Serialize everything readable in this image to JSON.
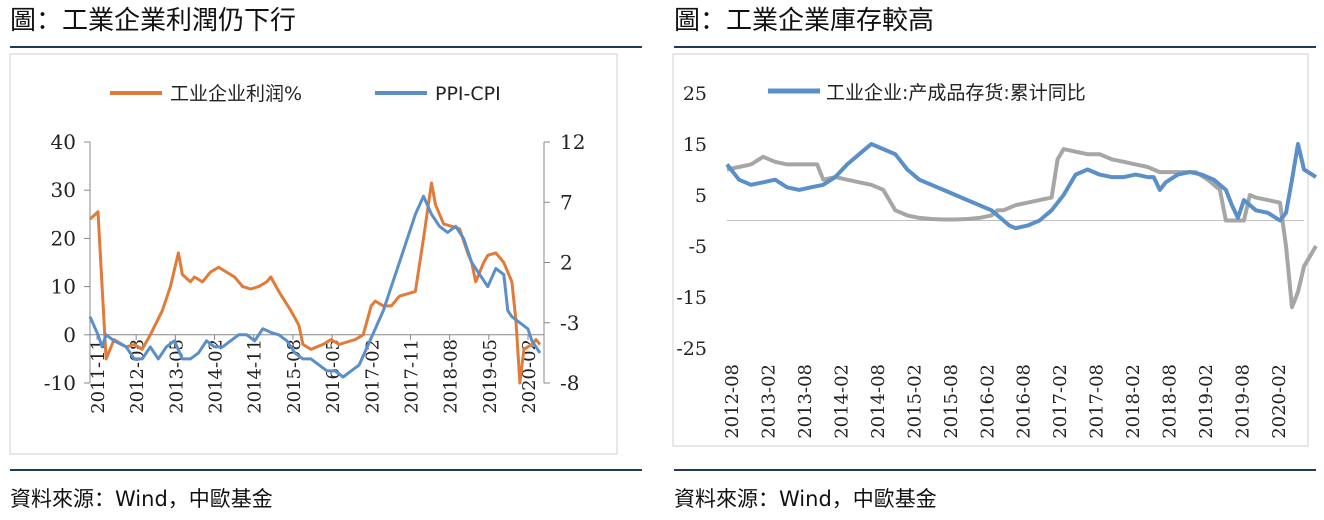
{
  "left": {
    "title": "圖：工業企業利潤仍下行",
    "source": "資料來源：Wind，中歐基金"
  },
  "right": {
    "title": "圖：工業企業庫存較高",
    "source": "資料來源：Wind，中歐基金"
  },
  "colors": {
    "orange": "#E07B39",
    "blue": "#5B8FC9",
    "gray": "#A6A6A6",
    "rule": "#1F3A5F"
  },
  "chart_data": [
    {
      "type": "line",
      "title": "",
      "legend_position": "top",
      "x_ticks": [
        "2011-11",
        "2012-08",
        "2013-05",
        "2014-02",
        "2014-11",
        "2015-08",
        "2016-05",
        "2017-02",
        "2017-11",
        "2018-08",
        "2019-05",
        "2020-02"
      ],
      "x_range": [
        0,
        113
      ],
      "y_left": {
        "range": [
          -10,
          40
        ],
        "ticks": [
          "-10",
          "0",
          "10",
          "20",
          "30",
          "40"
        ]
      },
      "y_right": {
        "range": [
          -8,
          12
        ],
        "ticks": [
          "-8",
          "-3",
          "2",
          "7",
          "12"
        ]
      },
      "grid": false,
      "series": [
        {
          "name": "工业企业利润%",
          "axis": "left",
          "color": "orange",
          "values": [
            [
              0,
              24
            ],
            [
              2,
              25.5
            ],
            [
              3,
              10
            ],
            [
              4,
              -5
            ],
            [
              6,
              -1
            ],
            [
              9,
              -2.5
            ],
            [
              11,
              -2
            ],
            [
              13,
              -3
            ],
            [
              15,
              0
            ],
            [
              18,
              5
            ],
            [
              20,
              10
            ],
            [
              22,
              17
            ],
            [
              23,
              12.5
            ],
            [
              25,
              11
            ],
            [
              26,
              12
            ],
            [
              28,
              11
            ],
            [
              30,
              13
            ],
            [
              32,
              14
            ],
            [
              34,
              13
            ],
            [
              36,
              12
            ],
            [
              38,
              10
            ],
            [
              40,
              9.5
            ],
            [
              42,
              10
            ],
            [
              44,
              11
            ],
            [
              45,
              12
            ],
            [
              47,
              9
            ],
            [
              50,
              5
            ],
            [
              52,
              2
            ],
            [
              53,
              -2
            ],
            [
              55,
              -3
            ],
            [
              58,
              -2
            ],
            [
              60,
              -1
            ],
            [
              62,
              -2
            ],
            [
              64,
              -1.5
            ],
            [
              66,
              -1
            ],
            [
              68,
              0
            ],
            [
              70,
              6
            ],
            [
              71,
              7
            ],
            [
              73,
              6
            ],
            [
              75,
              6
            ],
            [
              77,
              8
            ],
            [
              79,
              8.5
            ],
            [
              81,
              9
            ],
            [
              83,
              20
            ],
            [
              85,
              31.5
            ],
            [
              86,
              27
            ],
            [
              88,
              23
            ],
            [
              90,
              22.5
            ],
            [
              92,
              22
            ],
            [
              94,
              17
            ],
            [
              95,
              15
            ],
            [
              96,
              11
            ],
            [
              98,
              15
            ],
            [
              99,
              16.5
            ],
            [
              101,
              17
            ],
            [
              103,
              15
            ],
            [
              105,
              11
            ],
            [
              106,
              3
            ],
            [
              107,
              -10
            ],
            [
              108,
              -3
            ],
            [
              110,
              -2
            ],
            [
              111,
              -1
            ],
            [
              112,
              -2
            ]
          ]
        },
        {
          "name": "PPI-CPI",
          "axis": "right",
          "color": "blue",
          "values": [
            [
              0,
              -2.5
            ],
            [
              2,
              -4
            ],
            [
              3,
              -5
            ],
            [
              4,
              -4
            ],
            [
              6,
              -4.5
            ],
            [
              9,
              -5
            ],
            [
              11,
              -6
            ],
            [
              13,
              -6
            ],
            [
              15,
              -5
            ],
            [
              17,
              -6
            ],
            [
              19,
              -5
            ],
            [
              21,
              -4.5
            ],
            [
              23,
              -6
            ],
            [
              25,
              -6
            ],
            [
              27,
              -5.5
            ],
            [
              29,
              -4.5
            ],
            [
              31,
              -5
            ],
            [
              33,
              -5
            ],
            [
              35,
              -4.5
            ],
            [
              37,
              -4
            ],
            [
              39,
              -4
            ],
            [
              41,
              -4.5
            ],
            [
              43,
              -3.5
            ],
            [
              45,
              -3.8
            ],
            [
              47,
              -4
            ],
            [
              49,
              -4.5
            ],
            [
              51,
              -5.5
            ],
            [
              53,
              -6
            ],
            [
              55,
              -6
            ],
            [
              57,
              -6.5
            ],
            [
              59,
              -7
            ],
            [
              61,
              -7
            ],
            [
              63,
              -7.5
            ],
            [
              65,
              -7
            ],
            [
              67,
              -6.5
            ],
            [
              69,
              -5
            ],
            [
              71,
              -3.5
            ],
            [
              73,
              -2
            ],
            [
              75,
              0
            ],
            [
              77,
              2
            ],
            [
              79,
              4
            ],
            [
              81,
              6
            ],
            [
              83,
              7.5
            ],
            [
              85,
              6
            ],
            [
              87,
              5
            ],
            [
              89,
              4.5
            ],
            [
              91,
              5
            ],
            [
              93,
              4
            ],
            [
              95,
              2
            ],
            [
              97,
              1
            ],
            [
              99,
              0
            ],
            [
              101,
              1.5
            ],
            [
              103,
              1
            ],
            [
              104,
              -2
            ],
            [
              105,
              -2.5
            ],
            [
              107,
              -3
            ],
            [
              109,
              -3.5
            ],
            [
              110,
              -4.5
            ],
            [
              111,
              -5
            ],
            [
              112,
              -5.5
            ]
          ]
        }
      ]
    },
    {
      "type": "line",
      "title": "",
      "legend_position": "top",
      "x_ticks": [
        "2012-08",
        "2013-02",
        "2013-08",
        "2014-02",
        "2014-08",
        "2015-02",
        "2015-08",
        "2016-02",
        "2016-08",
        "2017-02",
        "2017-08",
        "2018-02",
        "2018-08",
        "2019-02",
        "2019-08",
        "2020-02"
      ],
      "x_range": [
        0,
        96
      ],
      "y": {
        "range": [
          -25,
          25
        ],
        "ticks": [
          "-25",
          "-15",
          "-5",
          "5",
          "15",
          "25"
        ]
      },
      "grid": false,
      "series": [
        {
          "name": "工业企业:产成品存货:累计同比",
          "color": "blue",
          "values": [
            [
              0,
              11
            ],
            [
              2,
              8
            ],
            [
              4,
              7
            ],
            [
              6,
              7.5
            ],
            [
              8,
              8
            ],
            [
              10,
              6.5
            ],
            [
              12,
              6
            ],
            [
              14,
              6.5
            ],
            [
              16,
              7
            ],
            [
              18,
              8.5
            ],
            [
              20,
              11
            ],
            [
              22,
              13
            ],
            [
              24,
              15
            ],
            [
              26,
              14
            ],
            [
              28,
              13
            ],
            [
              30,
              10
            ],
            [
              32,
              8
            ],
            [
              34,
              7
            ],
            [
              36,
              6
            ],
            [
              38,
              5
            ],
            [
              40,
              4
            ],
            [
              42,
              3
            ],
            [
              44,
              2
            ],
            [
              45,
              1
            ],
            [
              46,
              0
            ],
            [
              47,
              -1
            ],
            [
              48,
              -1.5
            ],
            [
              50,
              -1
            ],
            [
              52,
              0
            ],
            [
              54,
              2
            ],
            [
              56,
              5
            ],
            [
              58,
              9
            ],
            [
              60,
              10
            ],
            [
              62,
              9
            ],
            [
              64,
              8.5
            ],
            [
              66,
              8.5
            ],
            [
              68,
              9
            ],
            [
              70,
              8.5
            ],
            [
              71,
              8.5
            ],
            [
              72,
              6
            ],
            [
              73,
              7.5
            ],
            [
              75,
              9
            ],
            [
              77,
              9.5
            ],
            [
              79,
              9
            ],
            [
              81,
              8
            ],
            [
              83,
              6
            ],
            [
              84,
              3
            ],
            [
              85,
              0.5
            ],
            [
              86,
              4
            ],
            [
              88,
              2
            ],
            [
              90,
              1.5
            ],
            [
              92,
              0
            ],
            [
              93,
              1.5
            ],
            [
              94,
              8
            ],
            [
              95,
              15
            ],
            [
              96,
              10
            ],
            [
              98,
              8.5
            ]
          ]
        },
        {
          "name": "",
          "color": "gray",
          "values": [
            [
              0,
              10
            ],
            [
              2,
              10.5
            ],
            [
              4,
              11
            ],
            [
              6,
              12.5
            ],
            [
              8,
              11.5
            ],
            [
              10,
              11
            ],
            [
              12,
              11
            ],
            [
              14,
              11
            ],
            [
              15,
              11
            ],
            [
              16,
              8
            ],
            [
              18,
              8.5
            ],
            [
              20,
              8
            ],
            [
              22,
              7.5
            ],
            [
              24,
              7
            ],
            [
              26,
              6
            ],
            [
              28,
              2
            ],
            [
              30,
              1
            ],
            [
              32,
              0.5
            ],
            [
              34,
              0.3
            ],
            [
              36,
              0.2
            ],
            [
              38,
              0.2
            ],
            [
              40,
              0.3
            ],
            [
              42,
              0.5
            ],
            [
              44,
              1
            ],
            [
              45,
              2
            ],
            [
              46,
              2
            ],
            [
              48,
              3
            ],
            [
              50,
              3.5
            ],
            [
              52,
              4
            ],
            [
              54,
              4.5
            ],
            [
              55,
              12
            ],
            [
              56,
              14
            ],
            [
              58,
              13.5
            ],
            [
              60,
              13
            ],
            [
              62,
              13
            ],
            [
              64,
              12
            ],
            [
              66,
              11.5
            ],
            [
              68,
              11
            ],
            [
              70,
              10.5
            ],
            [
              72,
              9.5
            ],
            [
              74,
              9.5
            ],
            [
              76,
              9.5
            ],
            [
              78,
              9.5
            ],
            [
              80,
              8
            ],
            [
              82,
              6
            ],
            [
              83,
              0
            ],
            [
              84,
              0
            ],
            [
              86,
              0
            ],
            [
              87,
              5
            ],
            [
              88,
              4.5
            ],
            [
              90,
              4
            ],
            [
              92,
              3.5
            ],
            [
              93,
              -5
            ],
            [
              94,
              -17
            ],
            [
              95,
              -14
            ],
            [
              96,
              -9
            ],
            [
              97,
              -7
            ],
            [
              98,
              -5
            ]
          ]
        }
      ]
    }
  ]
}
